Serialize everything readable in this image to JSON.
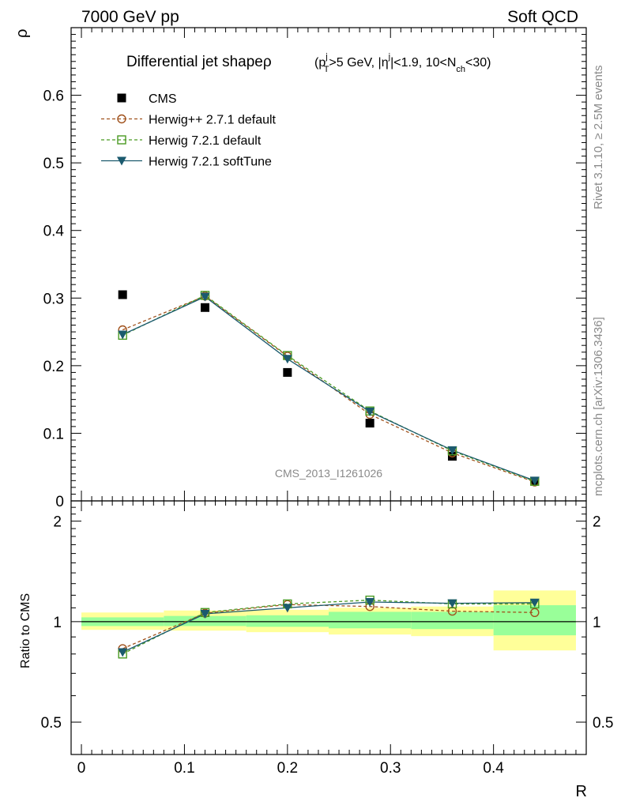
{
  "header": {
    "left": "7000 GeV pp",
    "right": "Soft QCD"
  },
  "side": {
    "rivet": "Rivet 3.1.10, ≥ 2.5M events",
    "mcplots": "mcplots.cern.ch [arXiv:1306.3436]"
  },
  "watermark": "CMS_2013_I1261026",
  "title": {
    "main": "Differential jet shapeρ",
    "cuts": "(p_T^j>5 GeV, |η^j|<1.9, 10<N_ch<30)"
  },
  "chart_data": [
    {
      "type": "scatter",
      "panel": "main",
      "ylabel": "ρ",
      "xlim": [
        -0.01,
        0.49
      ],
      "ylim": [
        0,
        0.7
      ],
      "x_ticks": [
        "0",
        "0.1",
        "0.2",
        "0.3",
        "0.4"
      ],
      "y_ticks": [
        "0",
        "0.1",
        "0.2",
        "0.3",
        "0.4",
        "0.5",
        "0.6"
      ],
      "legend_position": "top-left",
      "x": [
        0.04,
        0.12,
        0.2,
        0.28,
        0.36,
        0.44
      ],
      "series": [
        {
          "name": "CMS",
          "marker": "filled-square",
          "line": "none",
          "color": "#000000",
          "values": [
            0.305,
            0.286,
            0.19,
            0.115,
            0.066,
            0.029
          ]
        },
        {
          "name": "Herwig++ 2.7.1 default",
          "marker": "open-circle",
          "line": "dashed",
          "color": "#a0521d",
          "values": [
            0.253,
            0.303,
            0.214,
            0.128,
            0.071,
            0.028
          ]
        },
        {
          "name": "Herwig 7.2.1 default",
          "marker": "open-square",
          "line": "dashed",
          "color": "#4a9a22",
          "values": [
            0.245,
            0.304,
            0.215,
            0.133,
            0.074,
            0.029
          ]
        },
        {
          "name": "Herwig 7.2.1 softTune",
          "marker": "filled-triangle-down",
          "line": "solid",
          "color": "#1b5a6e",
          "values": [
            0.246,
            0.302,
            0.21,
            0.132,
            0.075,
            0.03
          ]
        }
      ]
    },
    {
      "type": "line",
      "panel": "ratio",
      "xlabel": "R",
      "ylabel": "Ratio to CMS",
      "xlim": [
        -0.01,
        0.49
      ],
      "ylim": [
        0.4,
        2.3
      ],
      "y_ticks": [
        "0.5",
        "1",
        "2"
      ],
      "x": [
        0.04,
        0.12,
        0.2,
        0.28,
        0.36,
        0.44
      ],
      "bin_edges": [
        0,
        0.08,
        0.16,
        0.24,
        0.32,
        0.4,
        0.48
      ],
      "band_inner": [
        [
          0.97,
          1.03
        ],
        [
          0.97,
          1.04
        ],
        [
          0.965,
          1.045
        ],
        [
          0.955,
          1.07
        ],
        [
          0.95,
          1.07
        ],
        [
          0.91,
          1.12
        ]
      ],
      "band_outer": [
        [
          0.945,
          1.065
        ],
        [
          0.94,
          1.08
        ],
        [
          0.93,
          1.085
        ],
        [
          0.915,
          1.1
        ],
        [
          0.905,
          1.11
        ],
        [
          0.82,
          1.24
        ]
      ],
      "band_colors": {
        "inner": "#99ff99",
        "outer": "#ffff99"
      },
      "series": [
        {
          "name": "Herwig++ 2.7.1 default",
          "values": [
            0.83,
            1.06,
            1.125,
            1.11,
            1.075,
            1.065
          ]
        },
        {
          "name": "Herwig 7.2.1 default",
          "values": [
            0.8,
            1.065,
            1.13,
            1.16,
            1.13,
            1.13
          ]
        },
        {
          "name": "Herwig 7.2.1 softTune",
          "values": [
            0.81,
            1.055,
            1.1,
            1.145,
            1.135,
            1.14
          ]
        }
      ]
    }
  ]
}
